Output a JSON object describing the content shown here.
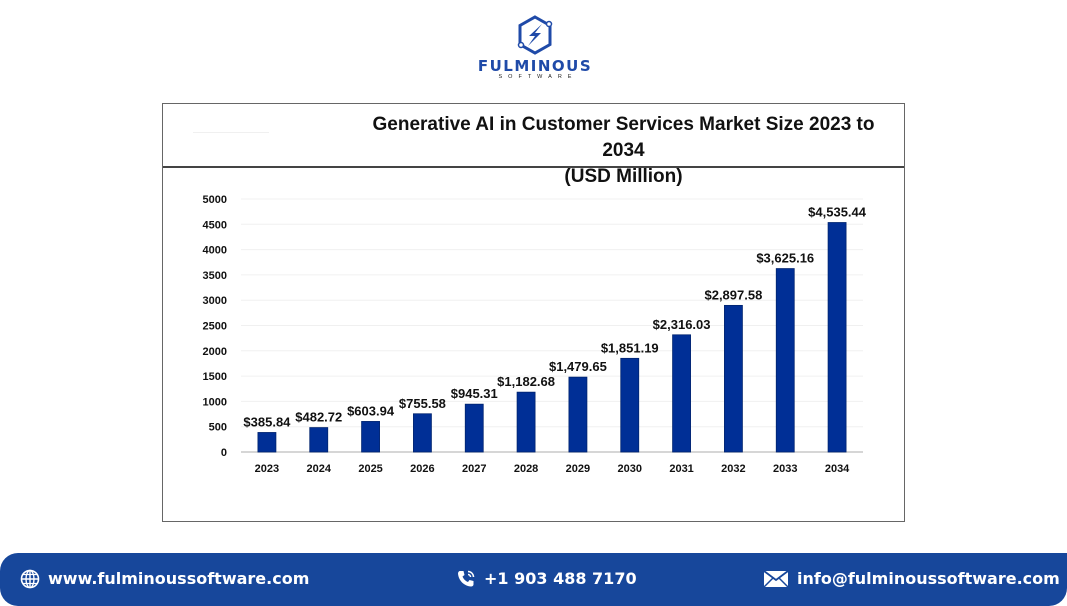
{
  "logo": {
    "name": "FULMINOUS",
    "subtitle": "SOFTWARE",
    "icon": "hexagon-lightning-icon",
    "color": "#1f4aa8"
  },
  "chart_data": {
    "type": "bar",
    "title": "Generative AI in Customer Services Market Size 2023 to 2034",
    "subtitle": "(USD Million)",
    "xlabel": "",
    "ylabel": "",
    "categories": [
      "2023",
      "2024",
      "2025",
      "2026",
      "2027",
      "2028",
      "2029",
      "2030",
      "2031",
      "2032",
      "2033",
      "2034"
    ],
    "values": [
      385.84,
      482.72,
      603.94,
      755.58,
      945.31,
      1182.68,
      1479.65,
      1851.19,
      2316.03,
      2897.58,
      3625.16,
      4535.44
    ],
    "data_labels": [
      "$385.84",
      "$482.72",
      "$603.94",
      "$755.58",
      "$945.31",
      "$1,182.68",
      "$1,479.65",
      "$1,851.19",
      "$2,316.03",
      "$2,897.58",
      "$3,625.16",
      "$4,535.44"
    ],
    "ylim": [
      0,
      5000
    ],
    "yticks": [
      0,
      500,
      1000,
      1500,
      2000,
      2500,
      3000,
      3500,
      4000,
      4500,
      5000
    ],
    "grid": true,
    "legend": "none",
    "bar_color": "#002f96"
  },
  "footer": {
    "website": "www.fulminoussoftware.com",
    "phone": "+1 903 488 7170",
    "email": "info@fulminoussoftware.com",
    "website_icon": "globe-icon",
    "phone_icon": "phone-icon",
    "email_icon": "envelope-icon",
    "background": "#17479b"
  }
}
